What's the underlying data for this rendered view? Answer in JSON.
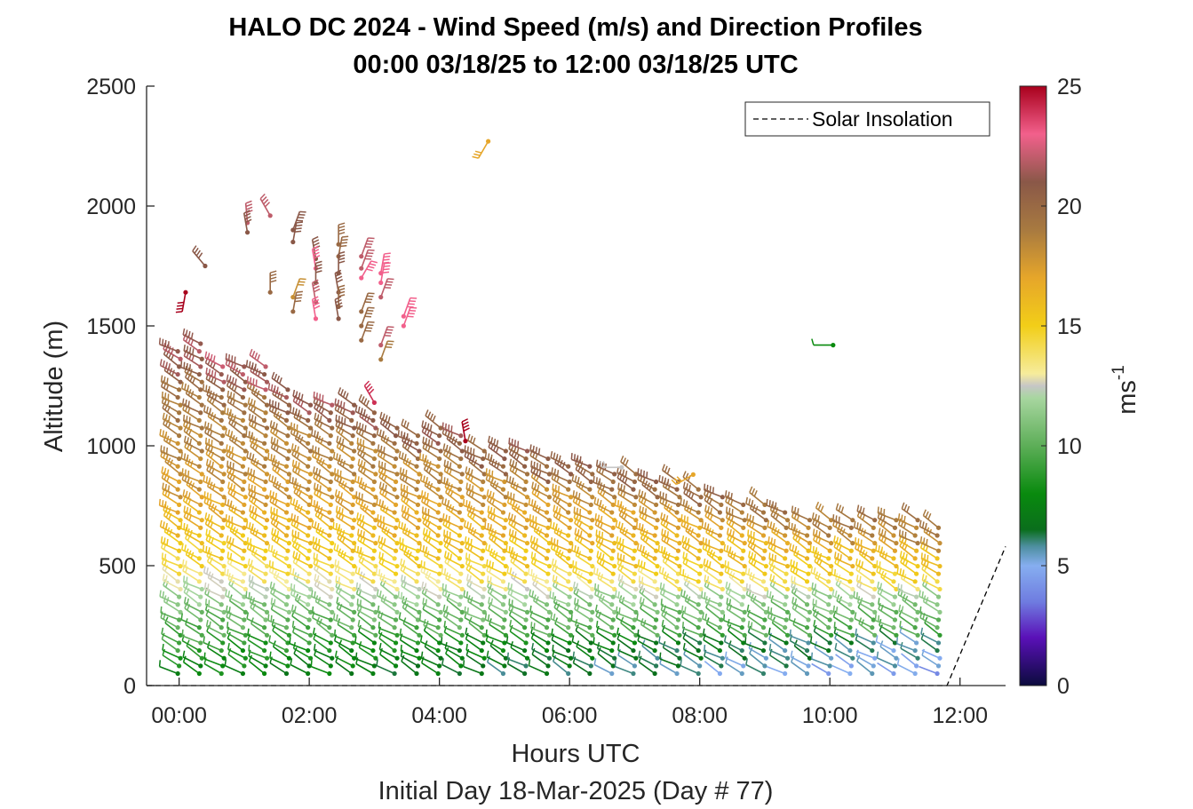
{
  "chart_data": {
    "type": "wind-barb-profile",
    "title": "HALO DC 2024 - Wind Speed (m/s) and Direction Profiles",
    "subtitle": "00:00 03/18/25 to 12:00 03/18/25  UTC",
    "xlabel": "Hours UTC",
    "xlabel2": "Initial Day 18-Mar-2025 (Day # 77)",
    "ylabel": "Altitude (m)",
    "xlim": [
      -0.5,
      12.7
    ],
    "ylim": [
      0,
      2500
    ],
    "xticks": [
      0,
      2,
      4,
      6,
      8,
      10,
      12
    ],
    "xtick_labels": [
      "00:00",
      "02:00",
      "04:00",
      "06:00",
      "08:00",
      "10:00",
      "12:00"
    ],
    "yticks": [
      0,
      500,
      1000,
      1500,
      2000,
      2500
    ],
    "ytick_labels": [
      "0",
      "500",
      "1000",
      "1500",
      "2000",
      "2500"
    ],
    "legend": {
      "label": "Solar Insolation",
      "placement": "top-right"
    },
    "colorbar": {
      "label": "ms",
      "label_exponent": "-1",
      "range": [
        0,
        25
      ],
      "ticks": [
        0,
        5,
        10,
        15,
        20,
        25
      ],
      "tick_labels": [
        "0",
        "5",
        "10",
        "15",
        "20",
        "25"
      ],
      "stops": [
        {
          "v": 0,
          "color": "#0b0b3d"
        },
        {
          "v": 2,
          "color": "#5a10b8"
        },
        {
          "v": 3.5,
          "color": "#6f7ce0"
        },
        {
          "v": 5,
          "color": "#86aef0"
        },
        {
          "v": 5.8,
          "color": "#4e8fa0"
        },
        {
          "v": 6.5,
          "color": "#0a6e1c"
        },
        {
          "v": 8,
          "color": "#098a0e"
        },
        {
          "v": 10,
          "color": "#5dae58"
        },
        {
          "v": 12,
          "color": "#a8d6a0"
        },
        {
          "v": 12.5,
          "color": "#c6c6c6"
        },
        {
          "v": 13,
          "color": "#f6ec9c"
        },
        {
          "v": 15,
          "color": "#f2ce18"
        },
        {
          "v": 17,
          "color": "#e6a62a"
        },
        {
          "v": 19,
          "color": "#a87a40"
        },
        {
          "v": 21,
          "color": "#8a5848"
        },
        {
          "v": 23,
          "color": "#f2608c"
        },
        {
          "v": 25,
          "color": "#a8001c"
        }
      ]
    },
    "solar_insolation": {
      "x": [
        -0.5,
        11.8,
        12.7
      ],
      "y": [
        0,
        0,
        580
      ]
    },
    "profiles": {
      "times": [
        0.0,
        0.33,
        0.67,
        1.0,
        1.33,
        1.67,
        2.0,
        2.33,
        2.67,
        3.0,
        3.33,
        3.67,
        4.0,
        4.33,
        4.67,
        5.0,
        5.33,
        5.67,
        6.0,
        6.33,
        6.67,
        7.0,
        7.33,
        7.67,
        8.0,
        8.33,
        8.67,
        9.0,
        9.33,
        9.67,
        10.0,
        10.33,
        10.67,
        11.0,
        11.33,
        11.67
      ],
      "top_altitudes": [
        1400,
        1440,
        1350,
        1350,
        1330,
        1240,
        1200,
        1190,
        1190,
        1150,
        1100,
        1050,
        1080,
        1050,
        1000,
        1000,
        990,
        960,
        940,
        930,
        910,
        890,
        870,
        850,
        820,
        800,
        780,
        770,
        740,
        720,
        700,
        700,
        700,
        700,
        700,
        680
      ],
      "min_altitude": 50,
      "altitude_step": 32,
      "speed_profile_altitudes": [
        50,
        300,
        500,
        800,
        1300
      ],
      "speed_profile_values": [
        8,
        10.5,
        14.5,
        17.5,
        20
      ],
      "direction_deg": 300
    },
    "scattered_barbs": [
      {
        "t": 0.1,
        "alt": 1640,
        "speed": 25,
        "dir": 190
      },
      {
        "t": 0.4,
        "alt": 1750,
        "speed": 21,
        "dir": 320
      },
      {
        "t": 1.05,
        "alt": 1930,
        "speed": 22,
        "dir": 355
      },
      {
        "t": 1.05,
        "alt": 1890,
        "speed": 21,
        "dir": 350
      },
      {
        "t": 1.4,
        "alt": 1960,
        "speed": 22,
        "dir": 330
      },
      {
        "t": 1.4,
        "alt": 1640,
        "speed": 20,
        "dir": 0
      },
      {
        "t": 1.75,
        "alt": 1900,
        "speed": 21,
        "dir": 20
      },
      {
        "t": 1.75,
        "alt": 1850,
        "speed": 21,
        "dir": 10
      },
      {
        "t": 1.75,
        "alt": 1620,
        "speed": 18,
        "dir": 20
      },
      {
        "t": 1.75,
        "alt": 1560,
        "speed": 20,
        "dir": 10
      },
      {
        "t": 2.1,
        "alt": 1780,
        "speed": 21,
        "dir": 350
      },
      {
        "t": 2.1,
        "alt": 1740,
        "speed": 23,
        "dir": 350
      },
      {
        "t": 2.1,
        "alt": 1680,
        "speed": 21,
        "dir": 0
      },
      {
        "t": 2.1,
        "alt": 1600,
        "speed": 22,
        "dir": 350
      },
      {
        "t": 2.1,
        "alt": 1530,
        "speed": 23,
        "dir": 350
      },
      {
        "t": 2.45,
        "alt": 1840,
        "speed": 20,
        "dir": 0
      },
      {
        "t": 2.45,
        "alt": 1790,
        "speed": 20,
        "dir": 10
      },
      {
        "t": 2.45,
        "alt": 1720,
        "speed": 21,
        "dir": 0
      },
      {
        "t": 2.45,
        "alt": 1640,
        "speed": 21,
        "dir": 350
      },
      {
        "t": 2.45,
        "alt": 1580,
        "speed": 20,
        "dir": 0
      },
      {
        "t": 2.45,
        "alt": 1530,
        "speed": 21,
        "dir": 350
      },
      {
        "t": 2.8,
        "alt": 1790,
        "speed": 22,
        "dir": 20
      },
      {
        "t": 2.8,
        "alt": 1740,
        "speed": 22,
        "dir": 20
      },
      {
        "t": 2.8,
        "alt": 1700,
        "speed": 23,
        "dir": 30
      },
      {
        "t": 2.8,
        "alt": 1560,
        "speed": 20,
        "dir": 20
      },
      {
        "t": 2.8,
        "alt": 1500,
        "speed": 20,
        "dir": 20
      },
      {
        "t": 2.8,
        "alt": 1440,
        "speed": 20,
        "dir": 20
      },
      {
        "t": 3.1,
        "alt": 1720,
        "speed": 23,
        "dir": 10
      },
      {
        "t": 3.1,
        "alt": 1680,
        "speed": 23,
        "dir": 10
      },
      {
        "t": 3.1,
        "alt": 1620,
        "speed": 22,
        "dir": 20
      },
      {
        "t": 3.1,
        "alt": 1420,
        "speed": 22,
        "dir": 20
      },
      {
        "t": 3.1,
        "alt": 1360,
        "speed": 19,
        "dir": 20
      },
      {
        "t": 3.45,
        "alt": 1540,
        "speed": 23,
        "dir": 20
      },
      {
        "t": 3.45,
        "alt": 1500,
        "speed": 23,
        "dir": 20
      },
      {
        "t": 4.75,
        "alt": 2270,
        "speed": 17,
        "dir": 210
      },
      {
        "t": 10.05,
        "alt": 1420,
        "speed": 8,
        "dir": 270
      },
      {
        "t": 6.8,
        "alt": 910,
        "speed": 12.5,
        "dir": 270
      },
      {
        "t": 7.9,
        "alt": 880,
        "speed": 17,
        "dir": 240
      },
      {
        "t": 4.4,
        "alt": 1020,
        "speed": 25,
        "dir": 350
      },
      {
        "t": 3.0,
        "alt": 1180,
        "speed": 24,
        "dir": 330
      }
    ]
  }
}
